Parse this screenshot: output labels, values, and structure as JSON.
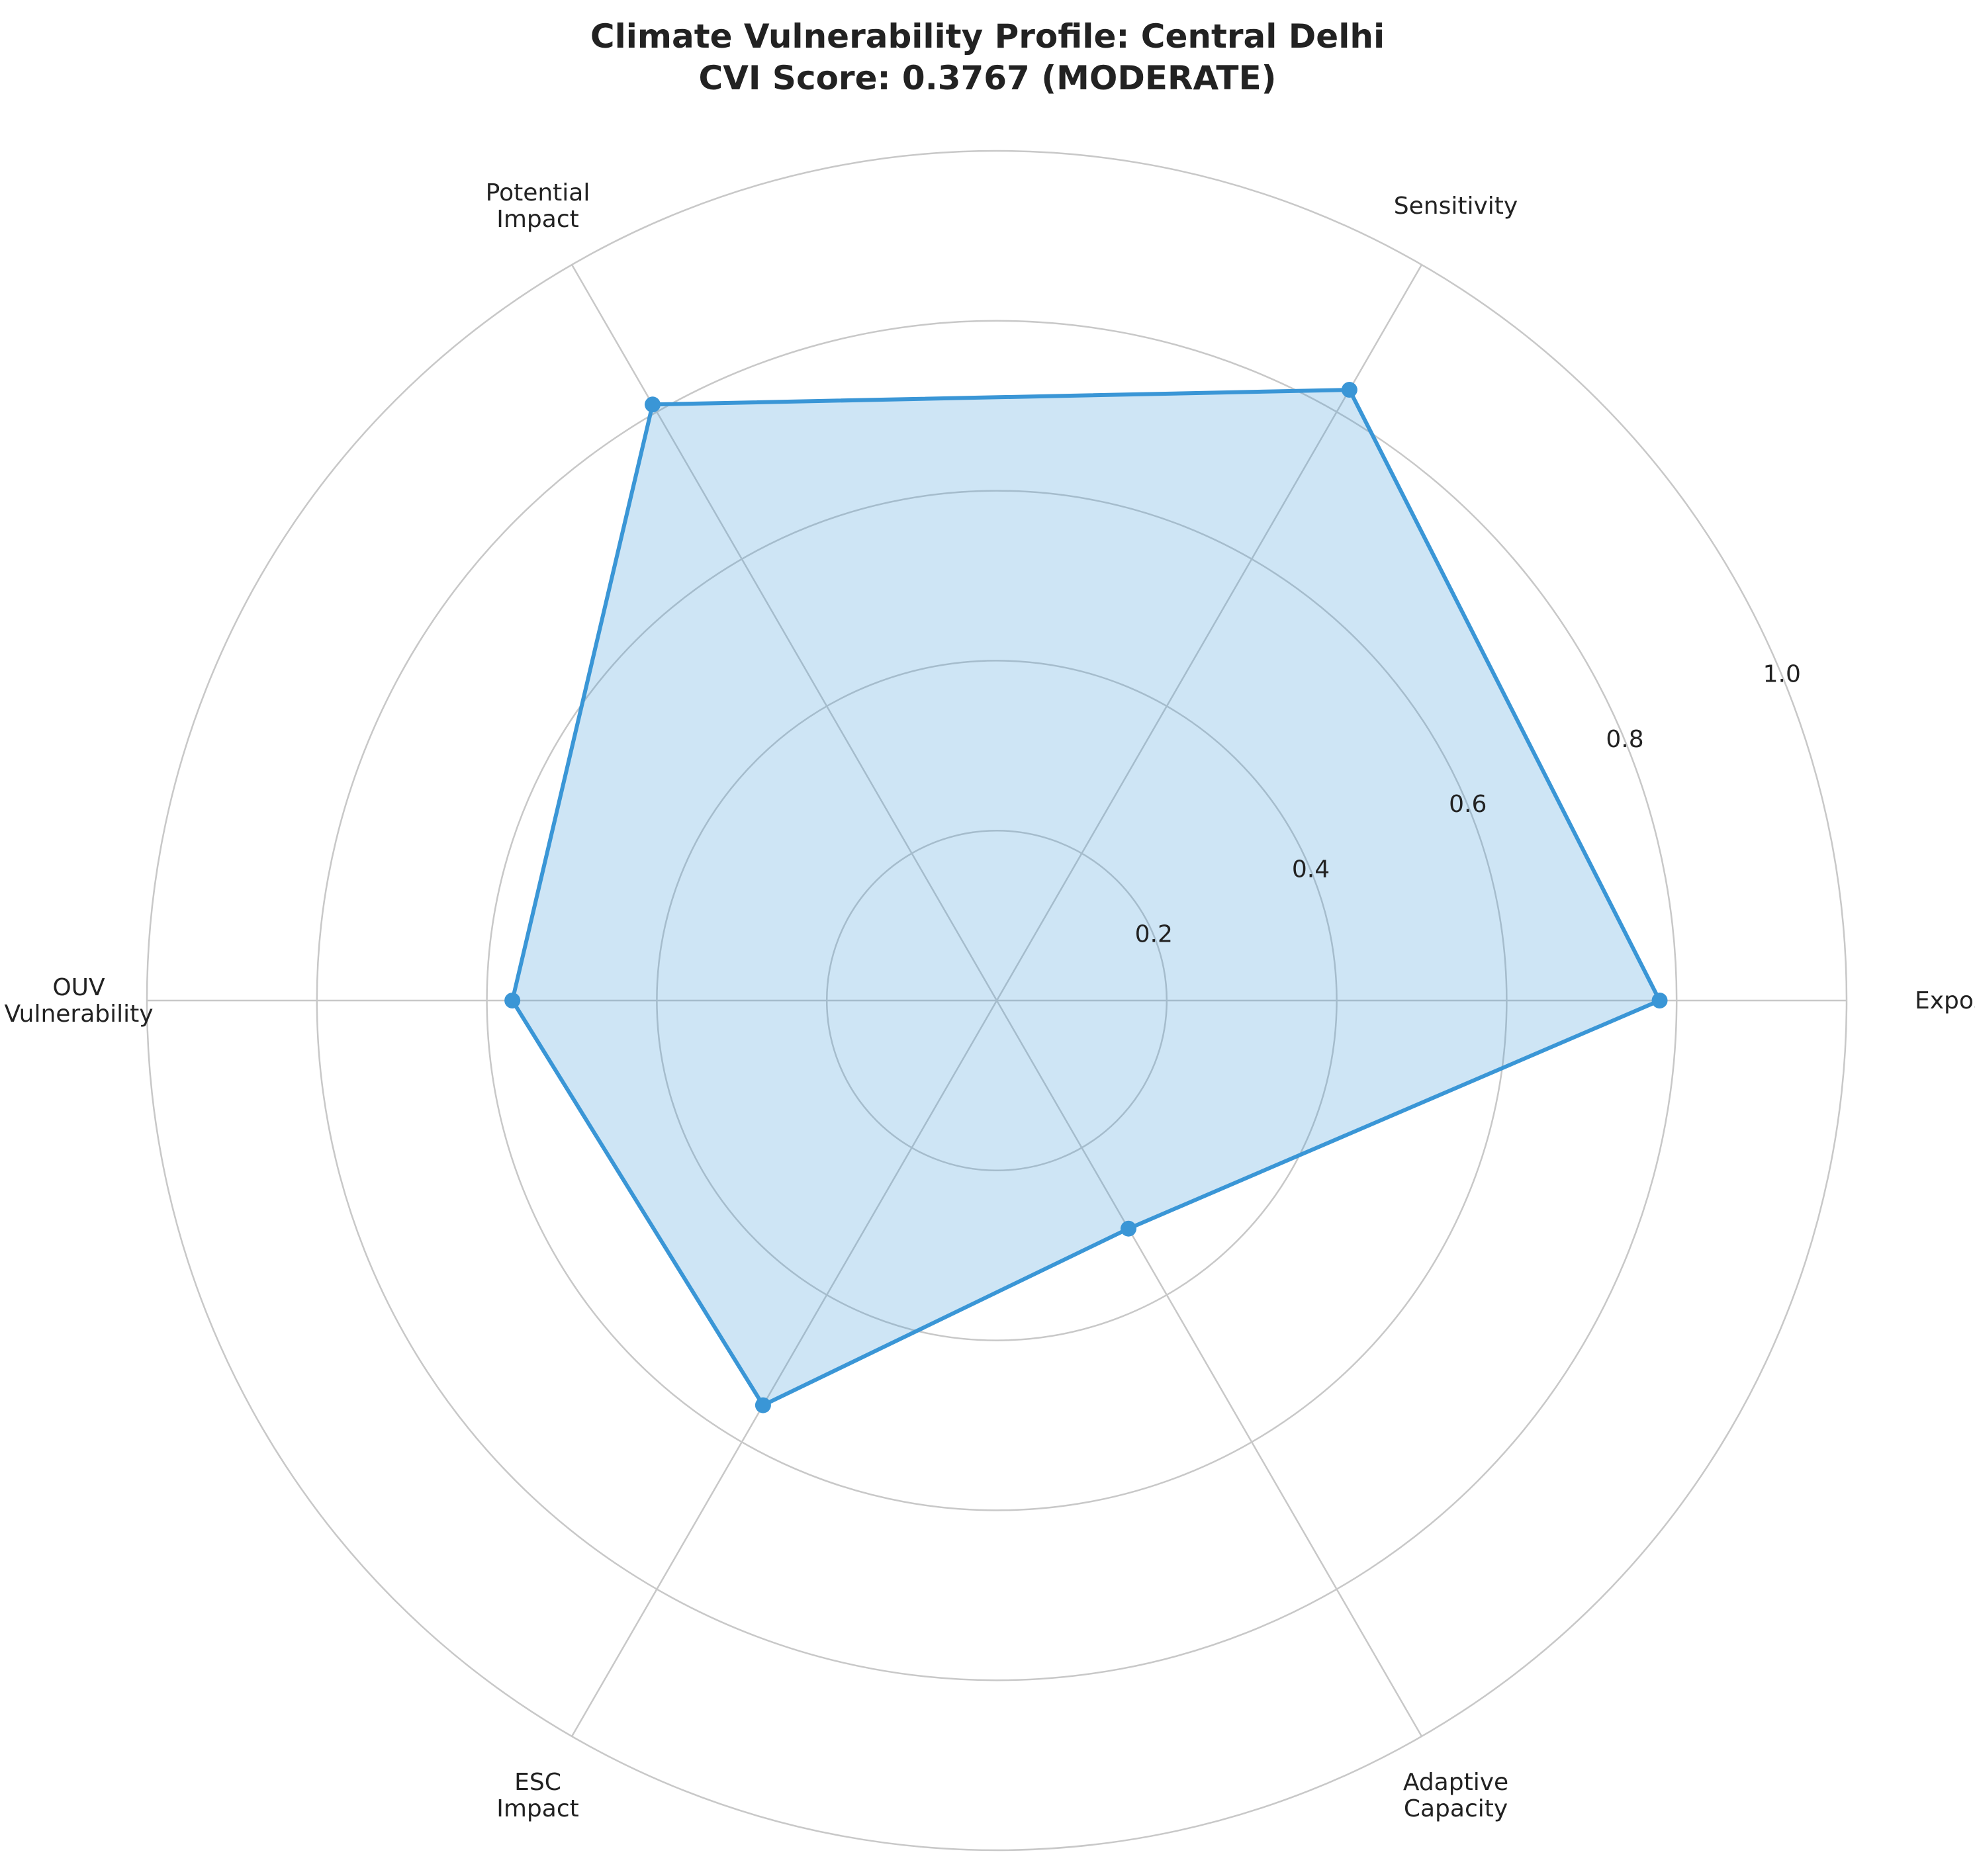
{
  "chart_data": {
    "type": "radar",
    "title_lines": [
      "Climate Vulnerability Profile: Central Delhi",
      "CVI Score: 0.3767 (MODERATE)"
    ],
    "categories": [
      [
        "Exposure"
      ],
      [
        "Sensitivity"
      ],
      [
        "Potential",
        "Impact"
      ],
      [
        "OUV",
        "Vulnerability"
      ],
      [
        "ESC",
        "Impact"
      ],
      [
        "Adaptive",
        "Capacity"
      ]
    ],
    "values": [
      0.78,
      0.83,
      0.81,
      0.57,
      0.55,
      0.31
    ],
    "rlim": [
      0,
      1.0
    ],
    "r_ticks": [
      0.2,
      0.4,
      0.6,
      0.8,
      1.0
    ],
    "r_tick_labels": [
      "0.2",
      "0.4",
      "0.6",
      "0.8",
      "1.0"
    ],
    "grid": true,
    "colors": {
      "line": "#3a96d6",
      "fill": "#3a96d6",
      "grid": "#c8c8c8"
    }
  }
}
